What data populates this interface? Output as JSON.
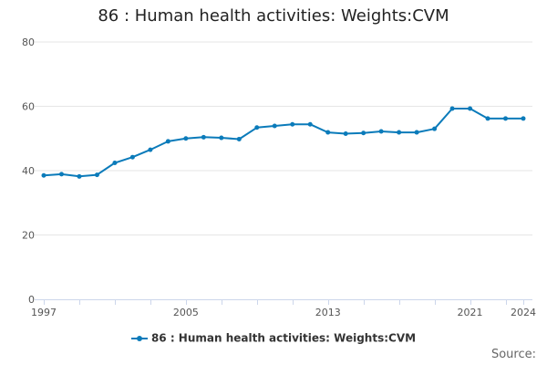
{
  "chart_data": {
    "type": "line",
    "title": "86 : Human health activities: Weights:CVM",
    "xlabel": "",
    "ylabel": "",
    "x": [
      1997,
      1998,
      1999,
      2000,
      2001,
      2002,
      2003,
      2004,
      2005,
      2006,
      2007,
      2008,
      2009,
      2010,
      2011,
      2012,
      2013,
      2014,
      2015,
      2016,
      2017,
      2018,
      2019,
      2020,
      2021,
      2022,
      2023,
      2024
    ],
    "series": [
      {
        "name": "86 : Human health activities: Weights:CVM",
        "color": "#0B7BBA",
        "values": [
          38.5,
          38.9,
          38.2,
          38.7,
          42.4,
          44.2,
          46.5,
          49.1,
          50.0,
          50.4,
          50.2,
          49.8,
          53.4,
          53.9,
          54.4,
          54.4,
          51.9,
          51.5,
          51.7,
          52.2,
          51.9,
          51.9,
          53.0,
          59.3,
          59.3,
          56.2,
          56.2,
          56.2
        ]
      }
    ],
    "xticks": [
      "1997",
      "2005",
      "2013",
      "2021",
      "2024"
    ],
    "yticks": [
      "0",
      "20",
      "40",
      "60",
      "80"
    ],
    "xlim": [
      1997,
      2024
    ],
    "ylim": [
      0,
      80
    ],
    "grid": "horizontal",
    "legend_position": "bottom-center"
  },
  "source_label": "Source:"
}
